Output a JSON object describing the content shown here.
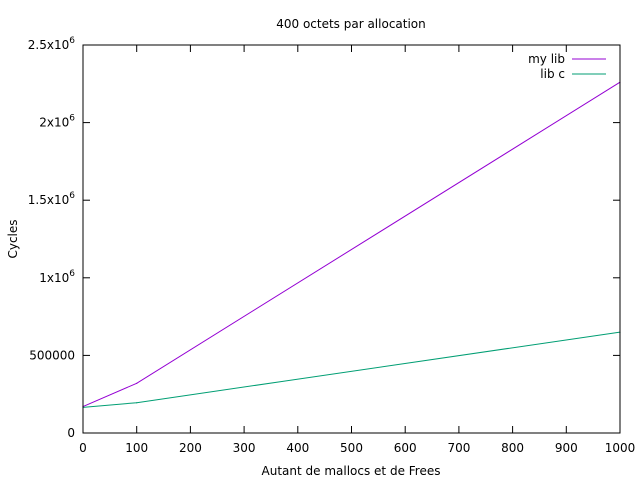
{
  "chart_data": {
    "type": "line",
    "title": "400 octets par allocation",
    "xlabel": "Autant de mallocs et de Frees",
    "ylabel": "Cycles",
    "xlim": [
      0,
      1000
    ],
    "ylim": [
      0,
      2500000
    ],
    "grid": false,
    "legend_position": "top-right",
    "x_ticks": [
      0,
      100,
      200,
      300,
      400,
      500,
      600,
      700,
      800,
      900,
      1000
    ],
    "x_tick_labels": [
      "0",
      "100",
      "200",
      "300",
      "400",
      "500",
      "600",
      "700",
      "800",
      "900",
      "1000"
    ],
    "y_ticks": [
      0,
      500000,
      1000000,
      1500000,
      2000000,
      2500000
    ],
    "y_tick_labels": [
      {
        "base": "0",
        "exp": ""
      },
      {
        "base": "500000",
        "exp": ""
      },
      {
        "base": "1x10",
        "exp": "6"
      },
      {
        "base": "1.5x10",
        "exp": "6"
      },
      {
        "base": "2x10",
        "exp": "6"
      },
      {
        "base": "2.5x10",
        "exp": "6"
      }
    ],
    "x": [
      0,
      100,
      1000
    ],
    "series": [
      {
        "name": "my lib",
        "color": "#9400d3",
        "values": [
          170000,
          320000,
          2260000
        ]
      },
      {
        "name": "lib c",
        "color": "#009e73",
        "values": [
          165000,
          195000,
          650000
        ]
      }
    ]
  }
}
